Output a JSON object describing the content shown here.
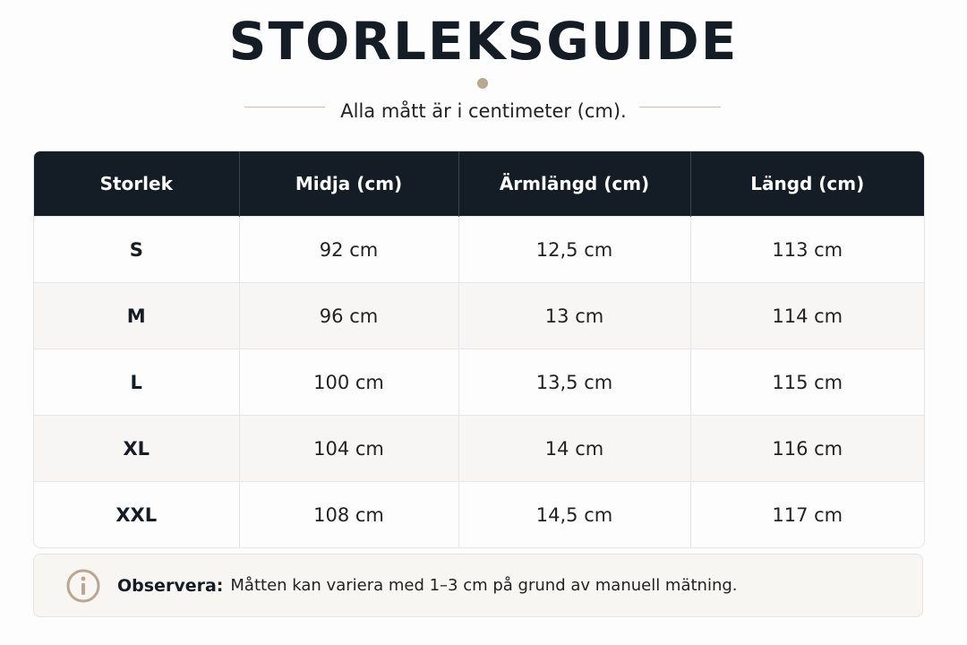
{
  "header": {
    "title": "STORLEKSGUIDE",
    "subtitle": "Alla mått är i centimeter (cm)."
  },
  "table": {
    "columns": [
      "Storlek",
      "Midja (cm)",
      "Ärmlängd (cm)",
      "Längd (cm)"
    ],
    "rows": [
      [
        "S",
        "92 cm",
        "12,5 cm",
        "113 cm"
      ],
      [
        "M",
        "96 cm",
        "13 cm",
        "114 cm"
      ],
      [
        "L",
        "100 cm",
        "13,5 cm",
        "115 cm"
      ],
      [
        "XL",
        "104 cm",
        "14 cm",
        "116 cm"
      ],
      [
        "XXL",
        "108 cm",
        "14,5 cm",
        "117 cm"
      ]
    ]
  },
  "note": {
    "label": "Observera:",
    "text": "Måtten kan variera med 1–3 cm på grund av manuell mätning."
  }
}
